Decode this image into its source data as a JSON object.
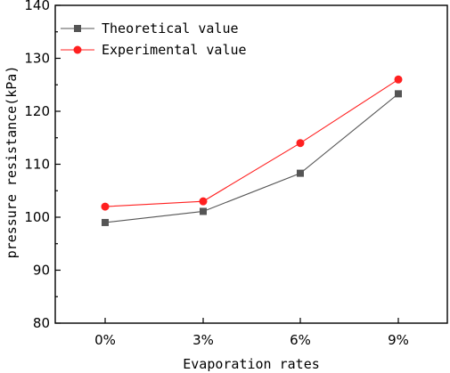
{
  "chart_data": {
    "type": "line",
    "title": "",
    "xlabel": "Evaporation rates",
    "ylabel": "pressure resistance(kPa)",
    "categories": [
      "0%",
      "3%",
      "6%",
      "9%"
    ],
    "ylim": [
      80,
      140
    ],
    "yticks": [
      80,
      90,
      100,
      110,
      120,
      130,
      140
    ],
    "grid": false,
    "legend_position": "top-left",
    "series": [
      {
        "name": "Theoretical value",
        "values": [
          99.0,
          101.1,
          108.3,
          123.3
        ],
        "color": "#555555",
        "marker": "square"
      },
      {
        "name": "Experimental value",
        "values": [
          102.0,
          103.0,
          114.0,
          126.0
        ],
        "color": "#ff2020",
        "marker": "circle"
      }
    ]
  }
}
